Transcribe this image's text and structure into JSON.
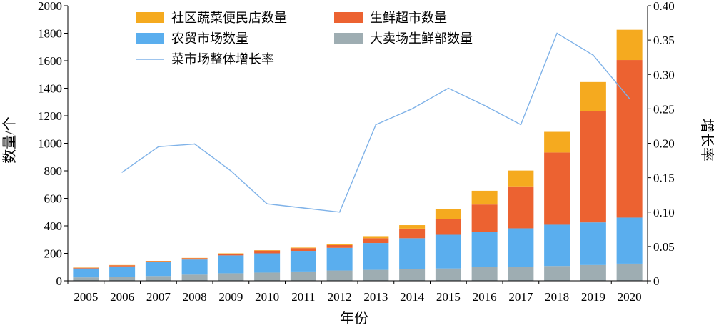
{
  "chart_data": {
    "type": "bar",
    "stacked": true,
    "categories": [
      "2005",
      "2006",
      "2007",
      "2008",
      "2009",
      "2010",
      "2011",
      "2012",
      "2013",
      "2014",
      "2015",
      "2016",
      "2017",
      "2018",
      "2019",
      "2020"
    ],
    "series": [
      {
        "name": "大卖场生鲜部数量",
        "color": "#9eadb2",
        "values": [
          25,
          30,
          35,
          45,
          55,
          60,
          68,
          75,
          80,
          88,
          90,
          100,
          102,
          108,
          115,
          125
        ]
      },
      {
        "name": "农贸市场数量",
        "color": "#5aaeee",
        "values": [
          65,
          75,
          100,
          110,
          130,
          140,
          150,
          165,
          195,
          222,
          245,
          255,
          280,
          300,
          310,
          335
        ]
      },
      {
        "name": "生鲜超市数量",
        "color": "#ec6231",
        "values": [
          5,
          8,
          8,
          10,
          12,
          20,
          20,
          20,
          35,
          70,
          115,
          200,
          305,
          525,
          810,
          1145
        ]
      },
      {
        "name": "社区蔬菜便民店数量",
        "color": "#f5aa1f",
        "values": [
          2,
          2,
          2,
          2,
          3,
          3,
          4,
          5,
          15,
          25,
          70,
          100,
          115,
          150,
          210,
          220
        ]
      }
    ],
    "line": {
      "name": "菜市场整体增长率",
      "color": "#7fb2e8",
      "x": [
        "2006",
        "2007",
        "2008",
        "2009",
        "2010",
        "2011",
        "2012",
        "2013",
        "2014",
        "2015",
        "2016",
        "2017",
        "2018",
        "2019",
        "2020"
      ],
      "values": [
        0.158,
        0.195,
        0.199,
        0.16,
        0.112,
        0.106,
        0.1,
        0.227,
        0.25,
        0.28,
        0.255,
        0.227,
        0.36,
        0.328,
        0.265
      ]
    },
    "xlabel": "年份",
    "ylabel": "数量/个",
    "y2label": "增长率",
    "ylim": [
      0,
      2000
    ],
    "y2lim": [
      0,
      0.4
    ],
    "yticks": [
      "0",
      "200",
      "400",
      "600",
      "800",
      "1000",
      "1200",
      "1400",
      "1600",
      "1800",
      "2000"
    ],
    "y2ticks": [
      "0",
      "0.05",
      "0.10",
      "0.15",
      "0.20",
      "0.25",
      "0.30",
      "0.35",
      "0.40"
    ],
    "legend": [
      "社区蔬菜便民店数量",
      "生鲜超市数量",
      "农贸市场数量",
      "大卖场生鲜部数量",
      "菜市场整体增长率"
    ],
    "legend_position": "top-left",
    "grid": false
  }
}
